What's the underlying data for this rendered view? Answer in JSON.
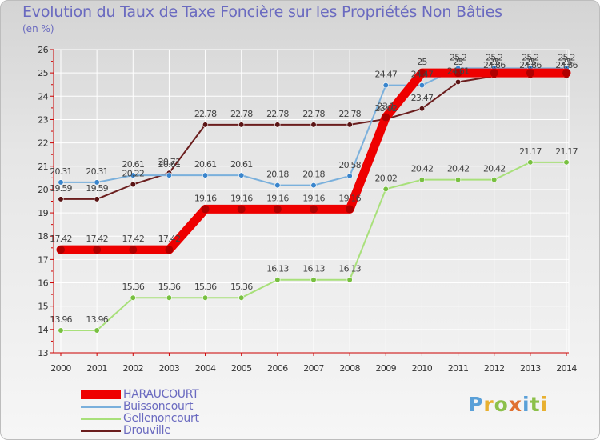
{
  "title": "Evolution du Taux de Taxe Foncière sur les Propriétés Non Bâties",
  "unit": "(en %)",
  "logo": {
    "letters": [
      "P",
      "r",
      "o",
      "x",
      "i",
      "t",
      "i"
    ],
    "colors": [
      "#5aa0d8",
      "#e8b030",
      "#8cc04a",
      "#e07030",
      "#5aa0d8",
      "#8cc04a",
      "#e8b030"
    ]
  },
  "chart_data": {
    "type": "line",
    "title": "Evolution du Taux de Taxe Foncière sur les Propriétés Non Bâties",
    "ylabel": "(en %)",
    "xlabel": "",
    "categories": [
      "2000",
      "2001",
      "2002",
      "2003",
      "2004",
      "2005",
      "2006",
      "2007",
      "2008",
      "2009",
      "2010",
      "2011",
      "2012",
      "2013",
      "2014"
    ],
    "yticks": [
      "13",
      "14",
      "15",
      "16",
      "17",
      "18",
      "19",
      "20",
      "21",
      "22",
      "23",
      "24",
      "25",
      "26"
    ],
    "ylim": [
      13,
      26
    ],
    "grid": true,
    "legend_position": "bottom-left",
    "series": [
      {
        "name": "Drouville",
        "color": "#6b1e1e",
        "marker": "#5a1414",
        "bold": false,
        "values": [
          19.59,
          19.59,
          20.22,
          20.71,
          22.78,
          22.78,
          22.78,
          22.78,
          22.78,
          23.02,
          23.47,
          24.61,
          24.86,
          24.86,
          24.86
        ],
        "labels": [
          "19.59",
          "19.59",
          "20.22",
          "20.71",
          "22.78",
          "22.78",
          "22.78",
          "22.78",
          "22.78",
          "23.02",
          "23.47",
          "24.61",
          "24.86",
          "24.86",
          "24.86"
        ]
      },
      {
        "name": "Gellenoncourt",
        "color": "#a8e07a",
        "marker": "#78c040",
        "bold": false,
        "values": [
          13.96,
          13.96,
          15.36,
          15.36,
          15.36,
          15.36,
          16.13,
          16.13,
          16.13,
          20.02,
          20.42,
          20.42,
          20.42,
          21.17,
          21.17
        ],
        "labels": [
          "13.96",
          "13.96",
          "15.36",
          "15.36",
          "15.36",
          "15.36",
          "16.13",
          "16.13",
          "16.13",
          "20.02",
          "20.42",
          "20.42",
          "20.42",
          "21.17",
          "21.17"
        ]
      },
      {
        "name": "Buissoncourt",
        "color": "#7ab0dc",
        "marker": "#3a85cc",
        "bold": false,
        "values": [
          20.31,
          20.31,
          20.61,
          20.61,
          20.61,
          20.61,
          20.18,
          20.18,
          20.58,
          24.47,
          24.47,
          25.2,
          25.2,
          25.2,
          25.2
        ],
        "labels": [
          "20.31",
          "20.31",
          "20.61",
          "20.61",
          "20.61",
          "20.61",
          "20.18",
          "20.18",
          "20.58",
          "24.47",
          "24.47",
          "25.2",
          "25.2",
          "25.2",
          "25.2"
        ]
      },
      {
        "name": "HARAUCOURT",
        "color": "#ee0000",
        "marker": "#b00000",
        "bold": true,
        "values": [
          17.42,
          17.42,
          17.42,
          17.42,
          19.16,
          19.16,
          19.16,
          19.16,
          19.16,
          23.1,
          25,
          25,
          25,
          25,
          25
        ],
        "labels": [
          "17.42",
          "17.42",
          "17.42",
          "17.42",
          "19.16",
          "19.16",
          "19.16",
          "19.16",
          "19.16",
          "23.1",
          "25",
          "25",
          "25",
          "25",
          "25"
        ]
      }
    ]
  }
}
